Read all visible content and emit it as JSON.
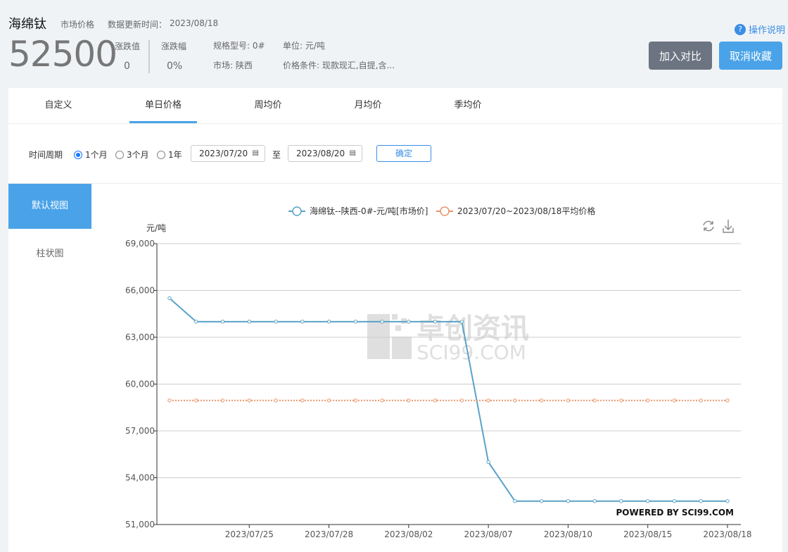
{
  "header": {
    "title": "海绵钛",
    "price_type": "市场价格",
    "update_label": "数据更新时间：",
    "update_date": "2023/08/18",
    "price": "52500",
    "change_label": "涨跌值",
    "change_value": "0",
    "change_pct_label": "涨跌幅",
    "change_pct_value": "0%",
    "spec": "规格型号: 0#",
    "unit": "单位: 元/吨",
    "market": "市场: 陕西",
    "condition": "价格条件: 现款现汇,自提,含...",
    "help": "操作说明",
    "compare_btn": "加入对比",
    "unfav_btn": "取消收藏"
  },
  "colors": {
    "accent": "#4aa3e8",
    "series": "#5aa2c8",
    "average": "#e8956a",
    "compare_btn": "#6b7480"
  },
  "tabs": [
    "自定义",
    "单日价格",
    "周均价",
    "月均价",
    "季均价"
  ],
  "active_tab": 1,
  "filter": {
    "label": "时间周期",
    "options": [
      "1个月",
      "3个月",
      "1年"
    ],
    "selected": 0,
    "start": "2023/07/20",
    "to": "至",
    "end": "2023/08/20",
    "confirm": "确定"
  },
  "side": {
    "default_view": "默认视图",
    "bar_view": "柱状图"
  },
  "watermark": {
    "cn": "卓创资讯",
    "en": "SCI99.COM",
    "powered": "POWERED BY SCI99.COM"
  },
  "chart_data": {
    "type": "line",
    "ylabel": "元/吨",
    "ylim": [
      51000,
      69000
    ],
    "yticks": [
      51000,
      54000,
      57000,
      60000,
      63000,
      66000,
      69000
    ],
    "ytick_labels": [
      "51,000",
      "54,000",
      "57,000",
      "60,000",
      "63,000",
      "66,000",
      "69,000"
    ],
    "x": [
      "2023/07/20",
      "2023/07/21",
      "2023/07/24",
      "2023/07/25",
      "2023/07/26",
      "2023/07/27",
      "2023/07/28",
      "2023/07/31",
      "2023/08/01",
      "2023/08/02",
      "2023/08/03",
      "2023/08/04",
      "2023/08/07",
      "2023/08/08",
      "2023/08/09",
      "2023/08/10",
      "2023/08/11",
      "2023/08/14",
      "2023/08/15",
      "2023/08/16",
      "2023/08/17",
      "2023/08/18"
    ],
    "xtick_labels": [
      "2023/07/25",
      "2023/07/28",
      "2023/08/02",
      "2023/08/07",
      "2023/08/10",
      "2023/08/15",
      "2023/08/18"
    ],
    "grid": true,
    "legend_position": "top",
    "series": [
      {
        "name": "海绵钛--陕西-0#-元/吨[市场价]",
        "values": [
          65500,
          64000,
          64000,
          64000,
          64000,
          64000,
          64000,
          64000,
          64000,
          64000,
          64000,
          64000,
          55000,
          52500,
          52500,
          52500,
          52500,
          52500,
          52500,
          52500,
          52500,
          52500
        ]
      },
      {
        "name": "2023/07/20~2023/08/18平均价格",
        "values": [
          58950,
          58950,
          58950,
          58950,
          58950,
          58950,
          58950,
          58950,
          58950,
          58950,
          58950,
          58950,
          58950,
          58950,
          58950,
          58950,
          58950,
          58950,
          58950,
          58950,
          58950,
          58950
        ]
      }
    ]
  }
}
